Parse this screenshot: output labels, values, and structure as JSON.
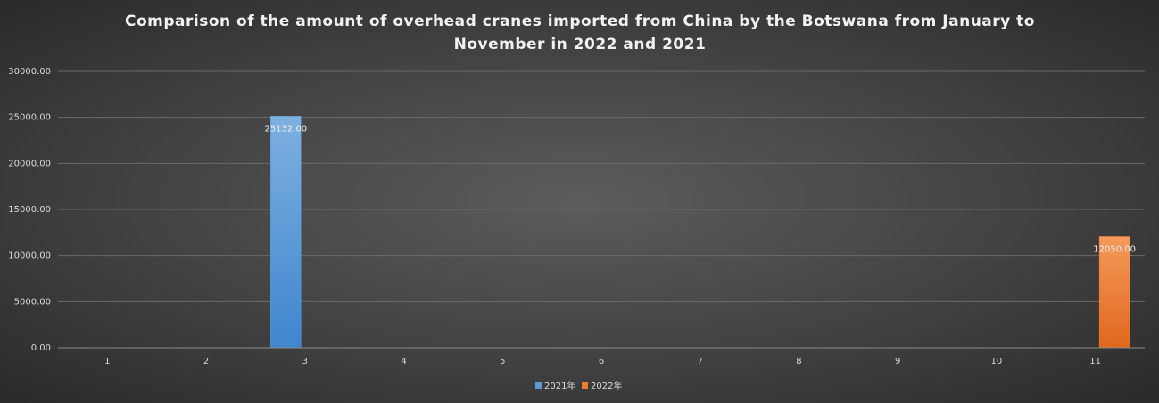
{
  "chart_data": {
    "type": "bar",
    "title": "Comparison of the amount of overhead cranes imported from China by the Botswana from January to November in 2022 and 2021",
    "categories": [
      "1",
      "2",
      "3",
      "4",
      "5",
      "6",
      "7",
      "8",
      "9",
      "10",
      "11"
    ],
    "series": [
      {
        "name": "2021年",
        "color": "#5b9bd5",
        "values": [
          null,
          null,
          25132,
          null,
          null,
          null,
          null,
          null,
          null,
          null,
          null
        ],
        "value_labels": [
          null,
          null,
          "25132.00",
          null,
          null,
          null,
          null,
          null,
          null,
          null,
          null
        ]
      },
      {
        "name": "2022年",
        "color": "#ed7d31",
        "values": [
          null,
          null,
          null,
          null,
          null,
          null,
          null,
          null,
          null,
          null,
          12050
        ],
        "value_labels": [
          null,
          null,
          null,
          null,
          null,
          null,
          null,
          null,
          null,
          null,
          "12050.00"
        ]
      }
    ],
    "ylim": [
      0,
      30000
    ],
    "yticks": [
      {
        "value": 0,
        "label": "0.00"
      },
      {
        "value": 5000,
        "label": "5000.00"
      },
      {
        "value": 10000,
        "label": "10000.00"
      },
      {
        "value": 15000,
        "label": "15000.00"
      },
      {
        "value": 20000,
        "label": "20000.00"
      },
      {
        "value": 25000,
        "label": "25000.00"
      },
      {
        "value": 30000,
        "label": "30000.00"
      }
    ],
    "grid": true,
    "legend": "bottom"
  }
}
